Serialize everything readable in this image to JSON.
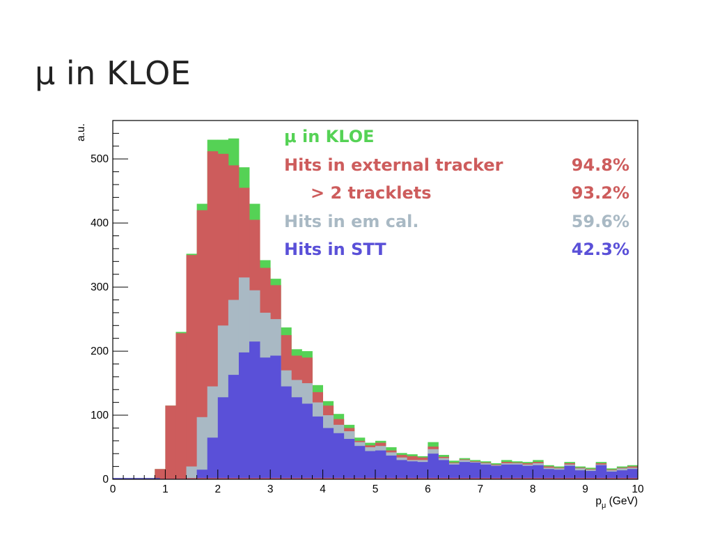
{
  "slide": {
    "title": "μ in KLOE"
  },
  "chart_data": {
    "type": "histogram",
    "title": "μ in KLOE",
    "xlabel": "p_μ (GeV)",
    "ylabel": "a.u.",
    "xlim": [
      0,
      10
    ],
    "ylim": [
      0,
      560
    ],
    "xticks": [
      0,
      1,
      2,
      3,
      4,
      5,
      6,
      7,
      8,
      9,
      10
    ],
    "yticks": [
      0,
      100,
      200,
      300,
      400,
      500
    ],
    "bin_edges": [
      0,
      0.2,
      0.4,
      0.6,
      0.8,
      1.0,
      1.2,
      1.4,
      1.6,
      1.8,
      2.0,
      2.2,
      2.4,
      2.6,
      2.8,
      3.0,
      3.2,
      3.4,
      3.6,
      3.8,
      4.0,
      4.2,
      4.4,
      4.6,
      4.8,
      5.0,
      5.2,
      5.4,
      5.6,
      5.8,
      6.0,
      6.2,
      6.4,
      6.6,
      6.8,
      7.0,
      7.2,
      7.4,
      7.6,
      7.8,
      8.0,
      8.2,
      8.4,
      8.6,
      8.8,
      9.0,
      9.2,
      9.4,
      9.6,
      9.8,
      10.0
    ],
    "legend_position": "top-right",
    "grid": false,
    "series": [
      {
        "name": "μ in KLOE",
        "color": "#55d255",
        "values": [
          0,
          0,
          0,
          0,
          16,
          115,
          230,
          352,
          430,
          530,
          530,
          532,
          487,
          430,
          342,
          313,
          237,
          203,
          200,
          147,
          122,
          102,
          85,
          65,
          57,
          60,
          50,
          41,
          39,
          36,
          58,
          38,
          29,
          33,
          30,
          28,
          25,
          30,
          28,
          27,
          30,
          22,
          20,
          27,
          20,
          18,
          27,
          17,
          20,
          22
        ]
      },
      {
        "name": "Hits in external tracker",
        "color": "#cd5c5c",
        "values": [
          0,
          0,
          0,
          0,
          16,
          115,
          228,
          350,
          420,
          512,
          508,
          490,
          455,
          405,
          330,
          303,
          225,
          193,
          190,
          136,
          115,
          94,
          80,
          60,
          53,
          57,
          45,
          38,
          36,
          34,
          51,
          35,
          26,
          31,
          28,
          26,
          23,
          27,
          26,
          25,
          27,
          20,
          18,
          25,
          18,
          16,
          25,
          15,
          18,
          20
        ]
      },
      {
        "name": "Hits in em cal.",
        "color": "#a9b9c4",
        "values": [
          0,
          0,
          0,
          0,
          0,
          0,
          0,
          20,
          97,
          145,
          240,
          280,
          315,
          295,
          260,
          250,
          170,
          155,
          150,
          120,
          100,
          85,
          75,
          58,
          50,
          52,
          42,
          34,
          30,
          30,
          47,
          33,
          25,
          30,
          27,
          25,
          22,
          25,
          25,
          23,
          25,
          18,
          17,
          23,
          17,
          15,
          23,
          14,
          17,
          18
        ]
      },
      {
        "name": "Hits in STT",
        "color": "#5a50d8",
        "values": [
          0,
          0,
          0,
          0,
          0,
          0,
          0,
          0,
          15,
          65,
          128,
          163,
          198,
          215,
          190,
          193,
          145,
          128,
          118,
          98,
          80,
          72,
          63,
          52,
          44,
          45,
          37,
          30,
          28,
          27,
          40,
          30,
          23,
          27,
          26,
          23,
          21,
          23,
          23,
          21,
          22,
          16,
          15,
          21,
          14,
          13,
          22,
          12,
          14,
          16
        ]
      }
    ],
    "annotations": [
      {
        "label": "μ in KLOE",
        "percent": "",
        "color": "#55d255",
        "indent": false
      },
      {
        "label": "Hits in external tracker",
        "percent": "94.8%",
        "color": "#cd5c5c",
        "indent": false
      },
      {
        "label": "> 2 tracklets",
        "percent": "93.2%",
        "color": "#cd5c5c",
        "indent": true
      },
      {
        "label": "Hits in em cal.",
        "percent": "59.6%",
        "color": "#a9b9c4",
        "indent": false
      },
      {
        "label": "Hits in STT",
        "percent": "42.3%",
        "color": "#5a50d8",
        "indent": false
      }
    ]
  }
}
